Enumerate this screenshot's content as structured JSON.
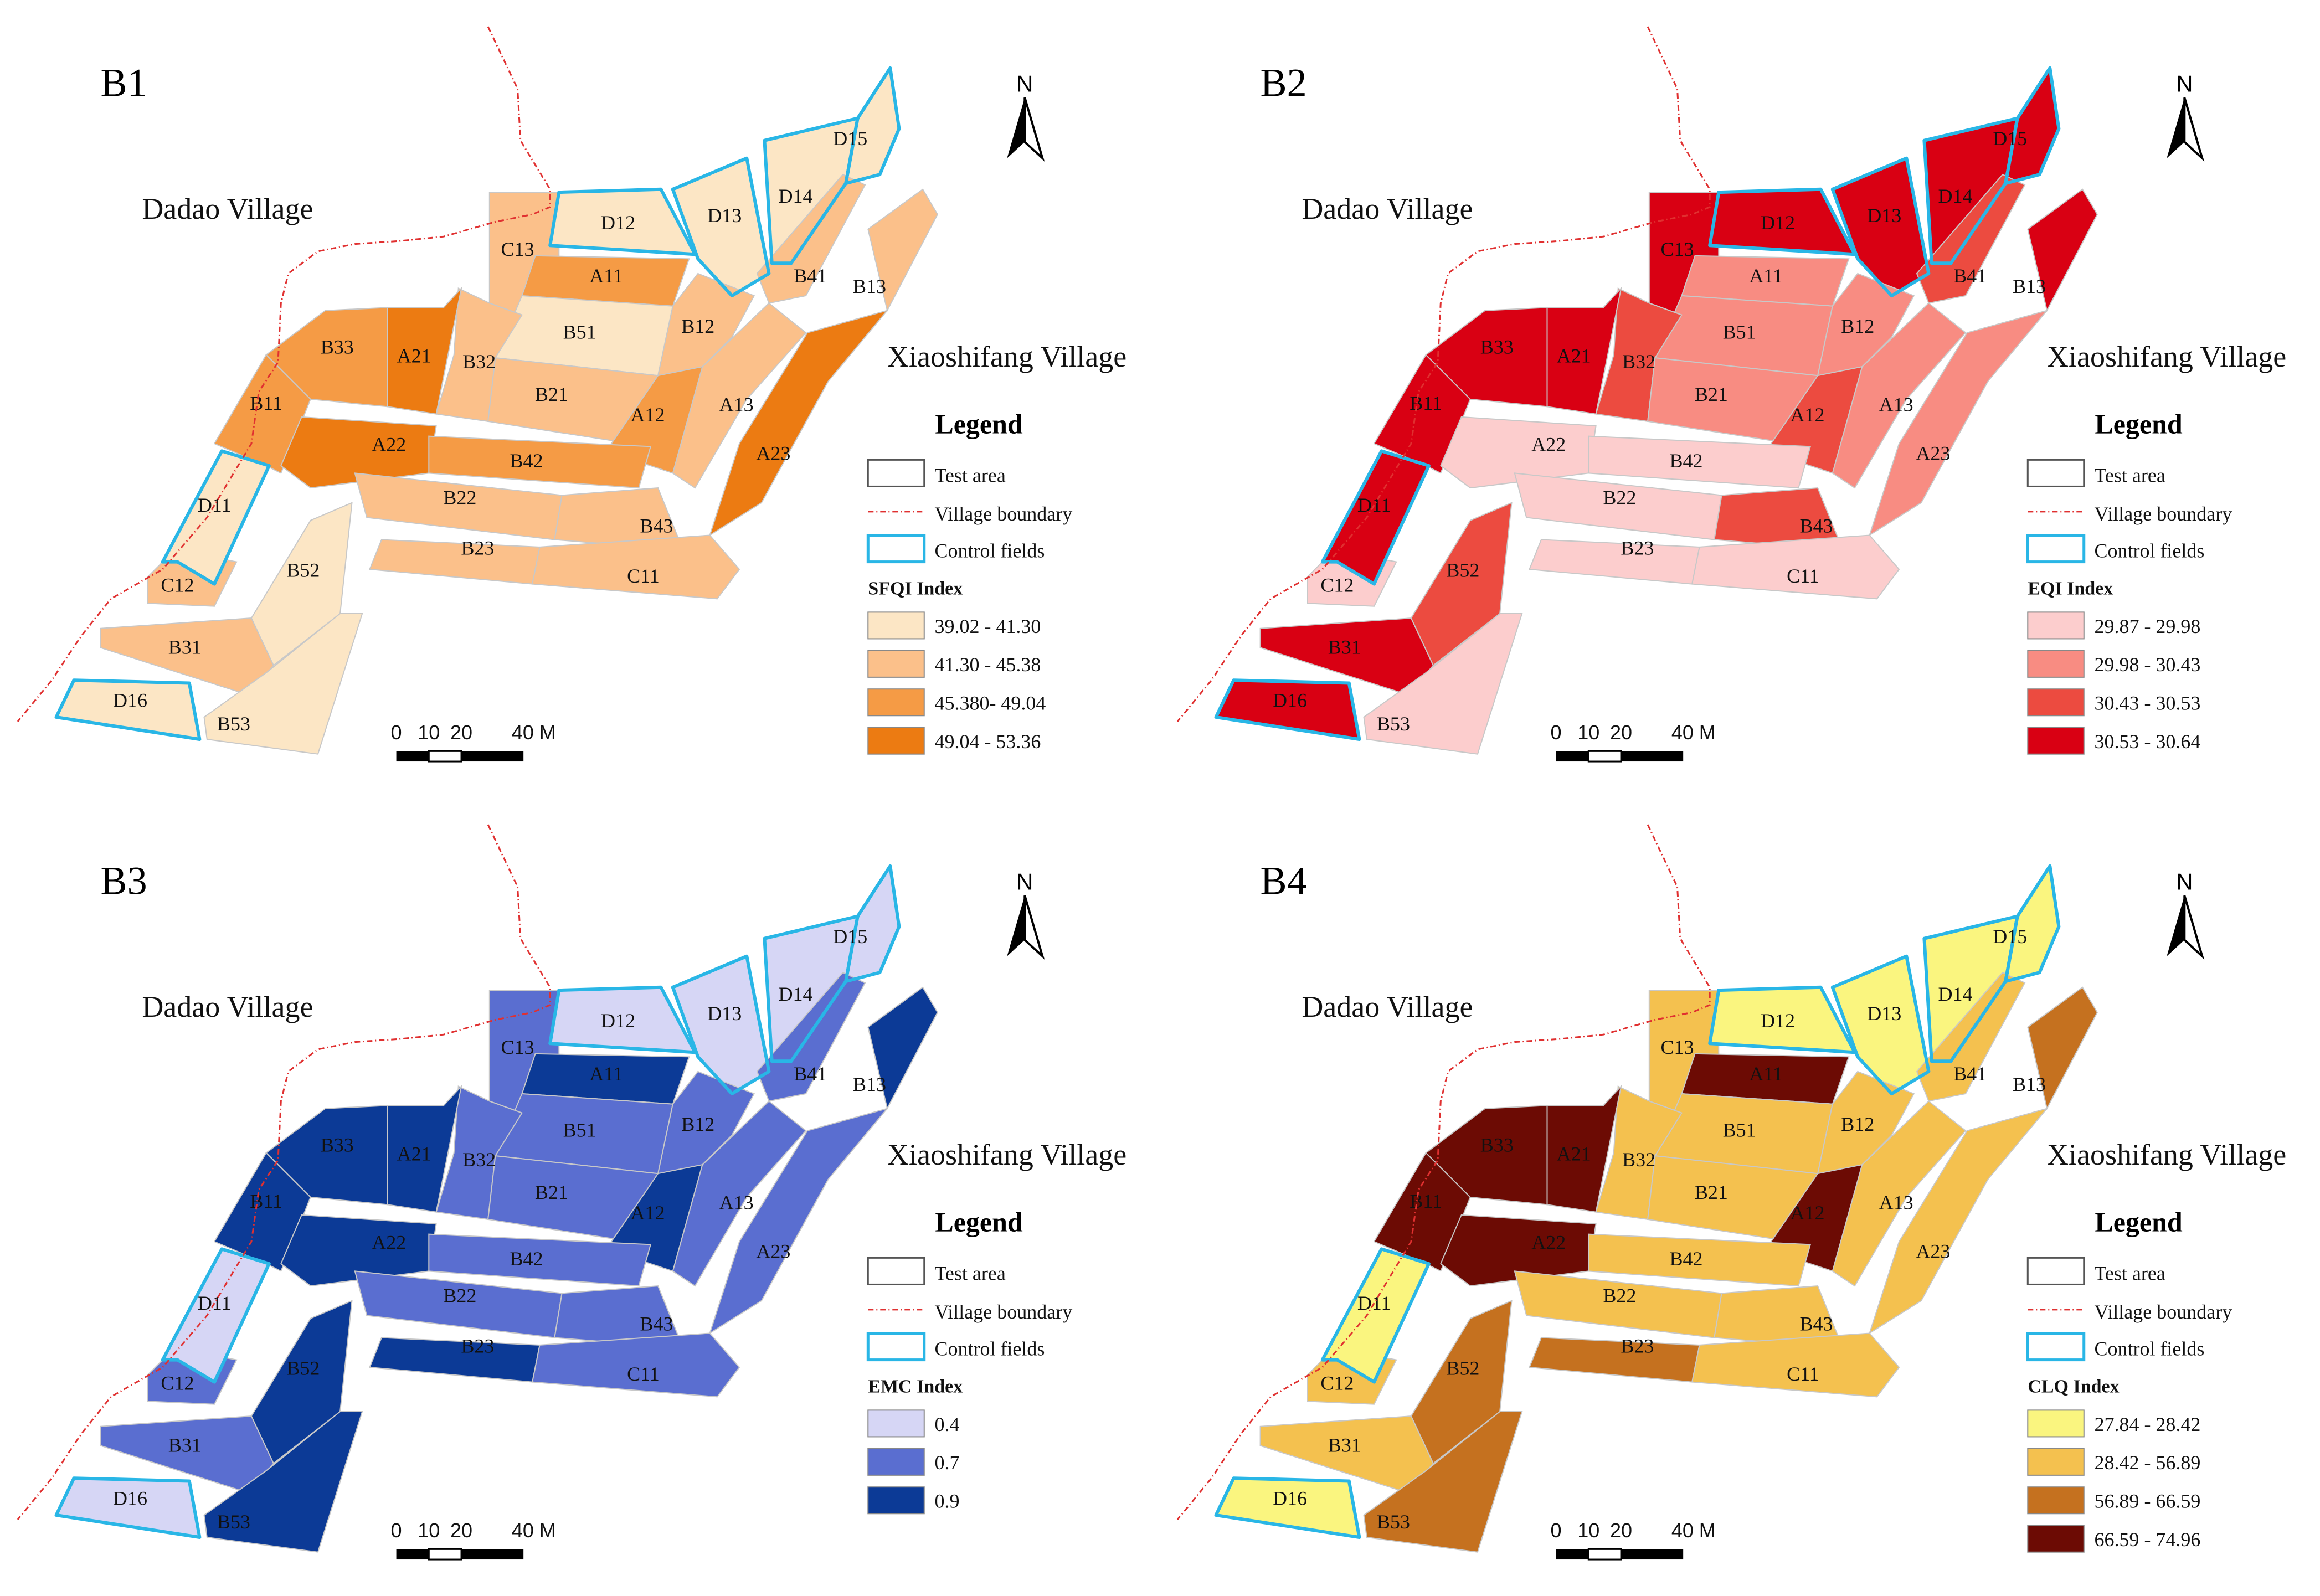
{
  "common": {
    "village_left": "Dadao Village",
    "village_right": "Xiaoshifang Village",
    "north_label": "N",
    "legend_title": "Legend",
    "legend_items": {
      "test_area": "Test area",
      "village_boundary": "Village boundary",
      "control_fields": "Control fields"
    },
    "scale": {
      "ticks": [
        "0",
        "10",
        "20",
        "40 M"
      ]
    },
    "colors": {
      "control_outline": "#29B6E6",
      "boundary": "#E03030",
      "plot_outline": "#C8C8C8"
    }
  },
  "panels": [
    {
      "label": "B1",
      "index_title": "SFQI Index",
      "classes": [
        {
          "label": "39.02 - 41.30",
          "color": "#FCE6C5"
        },
        {
          "label": "41.30 - 45.38",
          "color": "#FBC08A"
        },
        {
          "label": "45.380- 49.04",
          "color": "#F59B45"
        },
        {
          "label": "49.04 - 53.36",
          "color": "#EC7B12"
        }
      ],
      "plots": {
        "D12": 0,
        "D13": 0,
        "D14": 0,
        "D15": 0,
        "D11": 0,
        "D16": 0,
        "B51": 0,
        "B53": 0,
        "B52": 0,
        "C13": 1,
        "B32": 1,
        "B21": 1,
        "B12": 1,
        "B41": 1,
        "B13": 1,
        "A13": 1,
        "B22": 1,
        "B43": 1,
        "B23": 1,
        "C11": 1,
        "C12": 1,
        "B31": 1,
        "A11": 2,
        "A12": 2,
        "B33": 2,
        "B11": 2,
        "B42": 2,
        "A21": 3,
        "A22": 3,
        "A23": 3
      }
    },
    {
      "label": "B2",
      "index_title": "EQI Index",
      "classes": [
        {
          "label": "29.87 - 29.98",
          "color": "#FCCDCD"
        },
        {
          "label": "29.98 - 30.43",
          "color": "#F88C82"
        },
        {
          "label": "30.43 - 30.53",
          "color": "#EC4B40"
        },
        {
          "label": "30.53 - 30.64",
          "color": "#D90013"
        }
      ],
      "plots": {
        "A22": 0,
        "B42": 0,
        "B22": 0,
        "B23": 0,
        "C11": 0,
        "C12": 0,
        "B53": 0,
        "B51": 1,
        "B21": 1,
        "A13": 1,
        "A23": 1,
        "A11": 1,
        "B12": 1,
        "B32": 2,
        "A12": 2,
        "B43": 2,
        "B52": 2,
        "B41": 2,
        "C13": 3,
        "D12": 3,
        "D13": 3,
        "D14": 3,
        "D15": 3,
        "B13": 3,
        "B33": 3,
        "A21": 3,
        "B11": 3,
        "D11": 3,
        "B31": 3,
        "D16": 3
      }
    },
    {
      "label": "B3",
      "index_title": "EMC Index",
      "classes": [
        {
          "label": "0.4",
          "color": "#D6D6F5"
        },
        {
          "label": "0.7",
          "color": "#5A6ED0"
        },
        {
          "label": "0.9",
          "color": "#0C3A96"
        }
      ],
      "plots": {
        "D12": 0,
        "D13": 0,
        "D14": 0,
        "D15": 0,
        "D11": 0,
        "D16": 0,
        "C13": 1,
        "B32": 1,
        "B51": 1,
        "B21": 1,
        "B12": 1,
        "B41": 1,
        "A13": 1,
        "A23": 1,
        "B42": 1,
        "B22": 1,
        "B43": 1,
        "C11": 1,
        "C12": 1,
        "B31": 1,
        "A11": 2,
        "A12": 2,
        "B13": 2,
        "B33": 2,
        "A21": 2,
        "B11": 2,
        "A22": 2,
        "B52": 2,
        "B23": 2,
        "B53": 2
      }
    },
    {
      "label": "B4",
      "index_title": "CLQ Index",
      "classes": [
        {
          "label": "27.84 - 28.42",
          "color": "#FAF57F"
        },
        {
          "label": "28.42 - 56.89",
          "color": "#F4C14F"
        },
        {
          "label": "56.89 - 66.59",
          "color": "#C5711F"
        },
        {
          "label": "66.59 - 74.96",
          "color": "#6C0B04"
        }
      ],
      "plots": {
        "D12": 0,
        "D13": 0,
        "D14": 0,
        "D15": 0,
        "D11": 0,
        "D16": 0,
        "C13": 1,
        "B32": 1,
        "B51": 1,
        "B21": 1,
        "B12": 1,
        "B41": 1,
        "A13": 1,
        "A23": 1,
        "B42": 1,
        "B22": 1,
        "B43": 1,
        "C11": 1,
        "C12": 1,
        "B31": 1,
        "B13": 2,
        "B52": 2,
        "B23": 2,
        "B53": 2,
        "A11": 3,
        "A12": 3,
        "B33": 3,
        "A21": 3,
        "B11": 3,
        "A22": 3
      }
    }
  ]
}
